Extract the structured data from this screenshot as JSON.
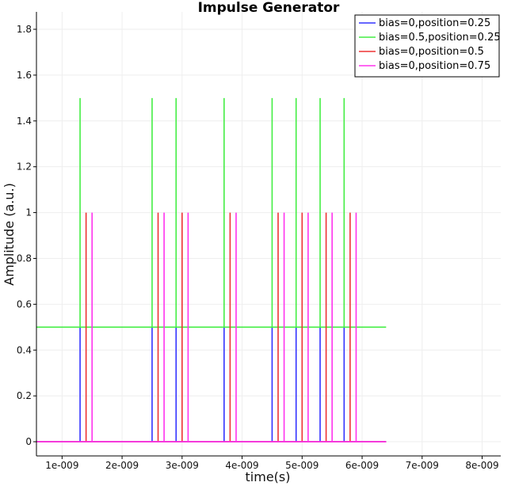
{
  "chart_data": {
    "type": "line",
    "title": "Impulse Generator",
    "xlabel": "time(s)",
    "ylabel": "Amplitude (a.u.)",
    "xlim": [
      5.73e-10,
      8.31e-09
    ],
    "ylim": [
      -0.062,
      1.876
    ],
    "grid": true,
    "legend_position": "top-right",
    "x_ticks": [
      {
        "value": 1e-09,
        "label": "1e-009"
      },
      {
        "value": 2e-09,
        "label": "2e-009"
      },
      {
        "value": 3e-09,
        "label": "3e-009"
      },
      {
        "value": 4e-09,
        "label": "4e-009"
      },
      {
        "value": 5e-09,
        "label": "5e-009"
      },
      {
        "value": 6e-09,
        "label": "6e-009"
      },
      {
        "value": 7e-09,
        "label": "7e-009"
      },
      {
        "value": 8e-09,
        "label": "8e-009"
      }
    ],
    "y_ticks": [
      {
        "value": 0,
        "label": "0"
      },
      {
        "value": 0.2,
        "label": "0.2"
      },
      {
        "value": 0.4,
        "label": "0.4"
      },
      {
        "value": 0.6,
        "label": "0.6"
      },
      {
        "value": 0.8,
        "label": "0.8"
      },
      {
        "value": 1.0,
        "label": "1"
      },
      {
        "value": 1.2,
        "label": "1.2"
      },
      {
        "value": 1.4,
        "label": "1.4"
      },
      {
        "value": 1.6,
        "label": "1.6"
      },
      {
        "value": 1.8,
        "label": "1.8"
      }
    ],
    "series": [
      {
        "name": "bias=0,position=0.25",
        "color": "#3333ff",
        "baseline": 0,
        "pulse_amplitude": 0.5,
        "t_start": 0,
        "t_end": 6.4e-09,
        "pulse_times": [
          1.3e-09,
          2.5e-09,
          2.9e-09,
          3.7e-09,
          4.5e-09,
          4.9e-09,
          5.3e-09,
          5.7e-09
        ]
      },
      {
        "name": "bias=0.5,position=0.25",
        "color": "#44ee44",
        "baseline": 0.5,
        "pulse_amplitude": 1.0,
        "t_start": 0,
        "t_end": 6.4e-09,
        "pulse_times": [
          1.3e-09,
          2.5e-09,
          2.9e-09,
          3.7e-09,
          4.5e-09,
          4.9e-09,
          5.3e-09,
          5.7e-09
        ]
      },
      {
        "name": "bias=0,position=0.5",
        "color": "#ee3333",
        "baseline": 0,
        "pulse_amplitude": 1.0,
        "t_start": 0,
        "t_end": 6.4e-09,
        "pulse_times": [
          1.4e-09,
          2.6e-09,
          3e-09,
          3.8e-09,
          4.6e-09,
          5e-09,
          5.4e-09,
          5.8e-09
        ]
      },
      {
        "name": "bias=0,position=0.75",
        "color": "#ff33ee",
        "baseline": 0,
        "pulse_amplitude": 1.0,
        "t_start": 0,
        "t_end": 6.4e-09,
        "pulse_times": [
          1.5e-09,
          2.7e-09,
          3.1e-09,
          3.9e-09,
          4.7e-09,
          5.1e-09,
          5.5e-09,
          5.9e-09
        ]
      }
    ]
  }
}
